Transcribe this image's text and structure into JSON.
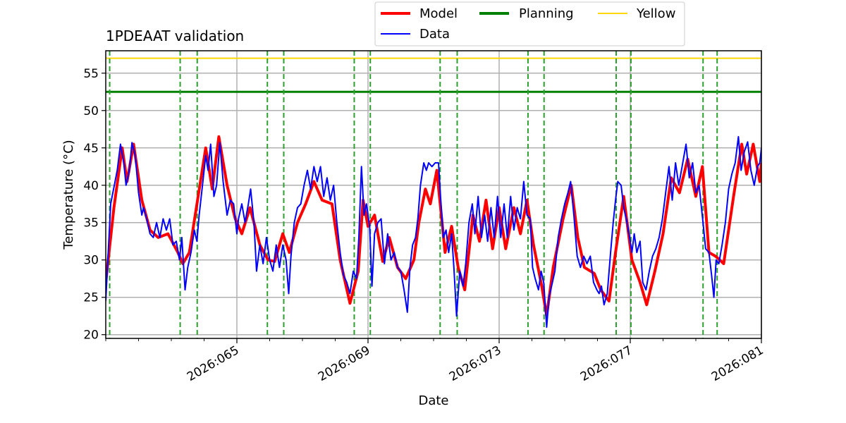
{
  "chart_data": {
    "type": "line",
    "title": "1PDEAAT validation",
    "xlabel": "Date",
    "ylabel": "Temperature (°C)",
    "xlim": [
      61.0,
      81.0
    ],
    "ylim": [
      19.5,
      58.0
    ],
    "yticks": [
      20,
      25,
      30,
      35,
      40,
      45,
      50,
      55
    ],
    "xticks": [
      65,
      69,
      73,
      77,
      81
    ],
    "xtick_labels": [
      "2026:065",
      "2026:069",
      "2026:073",
      "2026:077",
      "2026:081"
    ],
    "grid": true,
    "legend_position": "top-center",
    "legend": {
      "model": "Model",
      "data": "Data",
      "planning": "Planning",
      "yellow": "Yellow"
    },
    "colors": {
      "model": "#ff0000",
      "data": "#0000ff",
      "planning": "#008000",
      "yellow": "#ffd700",
      "transitions": "#2ca02c"
    },
    "planning_limit": 52.5,
    "yellow_limit": 57.0,
    "transition_days": [
      61.12,
      63.27,
      63.79,
      65.93,
      66.43,
      68.58,
      69.07,
      71.2,
      71.72,
      73.88,
      74.37,
      76.57,
      77.02,
      79.22,
      79.65
    ],
    "model_points": [
      [
        61.0,
        27
      ],
      [
        61.25,
        37
      ],
      [
        61.5,
        45
      ],
      [
        61.65,
        40.5
      ],
      [
        61.85,
        45.5
      ],
      [
        62.1,
        38
      ],
      [
        62.35,
        34
      ],
      [
        62.6,
        33
      ],
      [
        62.9,
        33.5
      ],
      [
        63.2,
        31
      ],
      [
        63.35,
        29.5
      ],
      [
        63.55,
        31
      ],
      [
        63.8,
        38
      ],
      [
        64.05,
        45
      ],
      [
        64.25,
        39.5
      ],
      [
        64.45,
        46.5
      ],
      [
        64.7,
        40
      ],
      [
        64.95,
        35.5
      ],
      [
        65.15,
        33.5
      ],
      [
        65.4,
        37
      ],
      [
        65.7,
        32
      ],
      [
        65.95,
        30
      ],
      [
        66.15,
        29.8
      ],
      [
        66.4,
        33.5
      ],
      [
        66.6,
        31
      ],
      [
        66.85,
        35
      ],
      [
        67.1,
        37.5
      ],
      [
        67.35,
        40.5
      ],
      [
        67.6,
        38
      ],
      [
        67.9,
        37.5
      ],
      [
        68.15,
        30
      ],
      [
        68.45,
        24.2
      ],
      [
        68.7,
        28.5
      ],
      [
        68.85,
        38
      ],
      [
        69.0,
        34.5
      ],
      [
        69.2,
        36
      ],
      [
        69.45,
        29.8
      ],
      [
        69.65,
        33
      ],
      [
        69.9,
        29
      ],
      [
        70.15,
        27.5
      ],
      [
        70.4,
        30
      ],
      [
        70.55,
        35
      ],
      [
        70.75,
        39.5
      ],
      [
        70.9,
        37.5
      ],
      [
        71.1,
        42
      ],
      [
        71.35,
        31
      ],
      [
        71.55,
        34.5
      ],
      [
        71.75,
        29
      ],
      [
        71.95,
        26
      ],
      [
        72.2,
        36
      ],
      [
        72.4,
        32.5
      ],
      [
        72.6,
        38
      ],
      [
        72.8,
        31.5
      ],
      [
        73.0,
        37
      ],
      [
        73.2,
        31.5
      ],
      [
        73.45,
        37
      ],
      [
        73.65,
        33.5
      ],
      [
        73.85,
        38
      ],
      [
        74.05,
        32
      ],
      [
        74.3,
        26.5
      ],
      [
        74.45,
        22.5
      ],
      [
        74.65,
        29
      ],
      [
        74.95,
        35.5
      ],
      [
        75.2,
        40
      ],
      [
        75.4,
        33
      ],
      [
        75.6,
        29
      ],
      [
        75.9,
        28.2
      ],
      [
        76.1,
        26
      ],
      [
        76.35,
        24.5
      ],
      [
        76.55,
        31
      ],
      [
        76.8,
        38.5
      ],
      [
        77.05,
        30
      ],
      [
        77.3,
        27
      ],
      [
        77.5,
        24
      ],
      [
        77.75,
        28.5
      ],
      [
        78.0,
        33.5
      ],
      [
        78.25,
        41
      ],
      [
        78.5,
        39
      ],
      [
        78.75,
        43.5
      ],
      [
        79.0,
        38.5
      ],
      [
        79.2,
        42.5
      ],
      [
        79.4,
        31
      ],
      [
        79.6,
        30.5
      ],
      [
        79.85,
        29.5
      ],
      [
        80.15,
        38.5
      ],
      [
        80.4,
        45.5
      ],
      [
        80.55,
        41.5
      ],
      [
        80.75,
        45.5
      ],
      [
        80.95,
        40.5
      ],
      [
        81.0,
        43
      ]
    ],
    "data_points": [
      [
        61.0,
        24.5
      ],
      [
        61.15,
        37.5
      ],
      [
        61.35,
        42
      ],
      [
        61.45,
        45.5
      ],
      [
        61.55,
        43
      ],
      [
        61.62,
        40
      ],
      [
        61.72,
        42
      ],
      [
        61.8,
        45.7
      ],
      [
        61.9,
        44
      ],
      [
        62.0,
        39
      ],
      [
        62.1,
        36
      ],
      [
        62.15,
        37
      ],
      [
        62.25,
        35.5
      ],
      [
        62.35,
        33.5
      ],
      [
        62.45,
        33
      ],
      [
        62.55,
        35
      ],
      [
        62.65,
        33
      ],
      [
        62.75,
        35.5
      ],
      [
        62.85,
        34
      ],
      [
        62.95,
        35.5
      ],
      [
        63.05,
        32
      ],
      [
        63.15,
        32.5
      ],
      [
        63.25,
        30
      ],
      [
        63.32,
        33
      ],
      [
        63.42,
        26
      ],
      [
        63.5,
        29
      ],
      [
        63.6,
        31
      ],
      [
        63.7,
        34
      ],
      [
        63.78,
        32.5
      ],
      [
        63.85,
        36
      ],
      [
        63.95,
        40
      ],
      [
        64.05,
        44
      ],
      [
        64.12,
        42
      ],
      [
        64.2,
        45.5
      ],
      [
        64.3,
        38.5
      ],
      [
        64.38,
        40
      ],
      [
        64.48,
        45.7
      ],
      [
        64.58,
        40.5
      ],
      [
        64.7,
        36
      ],
      [
        64.8,
        38
      ],
      [
        64.9,
        37.5
      ],
      [
        65.0,
        33.5
      ],
      [
        65.05,
        35.5
      ],
      [
        65.15,
        37.5
      ],
      [
        65.25,
        35
      ],
      [
        65.35,
        37.5
      ],
      [
        65.42,
        39.5
      ],
      [
        65.52,
        35
      ],
      [
        65.6,
        28.5
      ],
      [
        65.7,
        32
      ],
      [
        65.8,
        29.5
      ],
      [
        65.9,
        33
      ],
      [
        66.0,
        30
      ],
      [
        66.1,
        28.5
      ],
      [
        66.2,
        32
      ],
      [
        66.3,
        29
      ],
      [
        66.4,
        32
      ],
      [
        66.5,
        30
      ],
      [
        66.58,
        25.5
      ],
      [
        66.65,
        30.5
      ],
      [
        66.75,
        35
      ],
      [
        66.85,
        37
      ],
      [
        66.95,
        37.5
      ],
      [
        67.05,
        40
      ],
      [
        67.15,
        42
      ],
      [
        67.25,
        39.5
      ],
      [
        67.35,
        42.5
      ],
      [
        67.45,
        40.5
      ],
      [
        67.55,
        42.5
      ],
      [
        67.65,
        38.5
      ],
      [
        67.75,
        41
      ],
      [
        67.85,
        38
      ],
      [
        67.95,
        40
      ],
      [
        68.05,
        35
      ],
      [
        68.15,
        31
      ],
      [
        68.25,
        28
      ],
      [
        68.35,
        27
      ],
      [
        68.45,
        25.5
      ],
      [
        68.55,
        28.5
      ],
      [
        68.65,
        27.5
      ],
      [
        68.72,
        33
      ],
      [
        68.8,
        42.5
      ],
      [
        68.88,
        36
      ],
      [
        68.95,
        37.5
      ],
      [
        69.05,
        34.5
      ],
      [
        69.12,
        26.5
      ],
      [
        69.2,
        33.5
      ],
      [
        69.3,
        35
      ],
      [
        69.4,
        35.5
      ],
      [
        69.5,
        29.5
      ],
      [
        69.6,
        33.5
      ],
      [
        69.7,
        30
      ],
      [
        69.8,
        31
      ],
      [
        69.9,
        29
      ],
      [
        70.0,
        28.5
      ],
      [
        70.1,
        26
      ],
      [
        70.2,
        23
      ],
      [
        70.28,
        29
      ],
      [
        70.36,
        32
      ],
      [
        70.45,
        33
      ],
      [
        70.52,
        35.5
      ],
      [
        70.6,
        40
      ],
      [
        70.7,
        43
      ],
      [
        70.78,
        42
      ],
      [
        70.85,
        43
      ],
      [
        70.95,
        42.5
      ],
      [
        71.05,
        43
      ],
      [
        71.15,
        43
      ],
      [
        71.22,
        38
      ],
      [
        71.3,
        33
      ],
      [
        71.38,
        34
      ],
      [
        71.46,
        31
      ],
      [
        71.55,
        33.5
      ],
      [
        71.62,
        29
      ],
      [
        71.7,
        22.5
      ],
      [
        71.8,
        28.5
      ],
      [
        71.9,
        26.5
      ],
      [
        71.98,
        29.5
      ],
      [
        72.08,
        35
      ],
      [
        72.18,
        37.5
      ],
      [
        72.26,
        33.5
      ],
      [
        72.36,
        38.5
      ],
      [
        72.46,
        33
      ],
      [
        72.56,
        36
      ],
      [
        72.65,
        32.5
      ],
      [
        72.75,
        37
      ],
      [
        72.85,
        33
      ],
      [
        72.95,
        38.5
      ],
      [
        73.05,
        33
      ],
      [
        73.15,
        37.5
      ],
      [
        73.25,
        33
      ],
      [
        73.35,
        38.5
      ],
      [
        73.45,
        34
      ],
      [
        73.55,
        37
      ],
      [
        73.65,
        35.5
      ],
      [
        73.75,
        40.5
      ],
      [
        73.85,
        36
      ],
      [
        73.95,
        35.5
      ],
      [
        74.02,
        29
      ],
      [
        74.1,
        27.5
      ],
      [
        74.2,
        26
      ],
      [
        74.28,
        28.5
      ],
      [
        74.36,
        27
      ],
      [
        74.45,
        21
      ],
      [
        74.52,
        25
      ],
      [
        74.6,
        26.5
      ],
      [
        74.7,
        28.5
      ],
      [
        74.8,
        33
      ],
      [
        74.9,
        35.5
      ],
      [
        75.0,
        37.5
      ],
      [
        75.1,
        39
      ],
      [
        75.18,
        40.5
      ],
      [
        75.28,
        36
      ],
      [
        75.38,
        30.5
      ],
      [
        75.48,
        29
      ],
      [
        75.58,
        30.5
      ],
      [
        75.68,
        29.5
      ],
      [
        75.78,
        30.5
      ],
      [
        75.88,
        27
      ],
      [
        75.98,
        26
      ],
      [
        76.05,
        25.5
      ],
      [
        76.12,
        26.5
      ],
      [
        76.2,
        24
      ],
      [
        76.3,
        25.5
      ],
      [
        76.4,
        31
      ],
      [
        76.48,
        35
      ],
      [
        76.55,
        38
      ],
      [
        76.62,
        40.5
      ],
      [
        76.72,
        40
      ],
      [
        76.8,
        37
      ],
      [
        76.9,
        35
      ],
      [
        76.98,
        33
      ],
      [
        77.05,
        31
      ],
      [
        77.12,
        33.5
      ],
      [
        77.2,
        31
      ],
      [
        77.3,
        32.5
      ],
      [
        77.38,
        27
      ],
      [
        77.48,
        26
      ],
      [
        77.58,
        28.5
      ],
      [
        77.68,
        30.5
      ],
      [
        77.78,
        31.5
      ],
      [
        77.88,
        33
      ],
      [
        77.98,
        35.5
      ],
      [
        78.08,
        39
      ],
      [
        78.18,
        42.5
      ],
      [
        78.28,
        38
      ],
      [
        78.38,
        43
      ],
      [
        78.48,
        40
      ],
      [
        78.58,
        42.5
      ],
      [
        78.7,
        45.5
      ],
      [
        78.8,
        41
      ],
      [
        78.9,
        43
      ],
      [
        79.0,
        39
      ],
      [
        79.1,
        40
      ],
      [
        79.22,
        35
      ],
      [
        79.3,
        31.5
      ],
      [
        79.4,
        31
      ],
      [
        79.48,
        28
      ],
      [
        79.55,
        25
      ],
      [
        79.62,
        30
      ],
      [
        79.7,
        29.5
      ],
      [
        79.8,
        32
      ],
      [
        79.9,
        35
      ],
      [
        80.0,
        39.5
      ],
      [
        80.1,
        41.5
      ],
      [
        80.2,
        43
      ],
      [
        80.3,
        46.5
      ],
      [
        80.38,
        42
      ],
      [
        80.48,
        44.5
      ],
      [
        80.58,
        45.8
      ],
      [
        80.68,
        42
      ],
      [
        80.78,
        40
      ],
      [
        80.88,
        42.5
      ],
      [
        80.95,
        43
      ],
      [
        81.0,
        45
      ]
    ]
  }
}
